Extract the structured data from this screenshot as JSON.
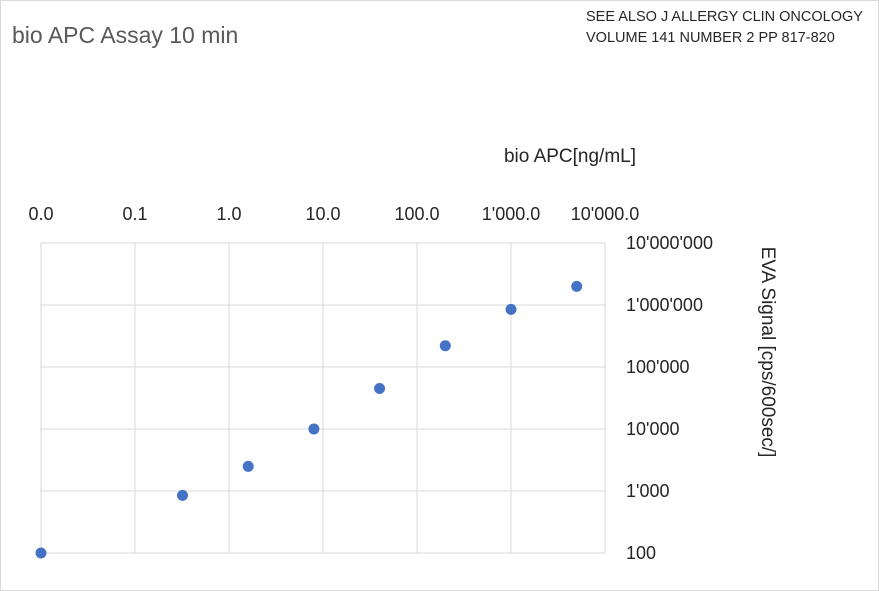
{
  "chart_data": {
    "type": "scatter",
    "title": "bio APC Assay 10 min",
    "annotation": [
      "SEE ALSO J ALLERGY CLIN ONCOLOGY",
      "VOLUME 141 NUMBER 2 PP 817-820"
    ],
    "xlabel": "bio APC[ng/mL]",
    "ylabel": "EVA Signal [cps/600sec/]",
    "x_scale": "log",
    "y_scale": "log",
    "x_axis_position": "top",
    "y_axis_position": "right",
    "xlim": [
      0.01,
      10000
    ],
    "ylim": [
      100,
      10000000
    ],
    "x_tick_labels": [
      "0.0",
      "0.1",
      "1.0",
      "10.0",
      "100.0",
      "1'000.0",
      "10'000.0"
    ],
    "y_tick_labels": [
      "100",
      "1'000",
      "10'000",
      "100'000",
      "1'000'000",
      "10'000'000"
    ],
    "grid": true,
    "legend": "none",
    "marker_color": "#4472c4",
    "x": [
      0.01,
      0.32,
      1.6,
      8,
      40,
      200,
      1000,
      5000
    ],
    "y": [
      100,
      850,
      2500,
      10000,
      45000,
      220000,
      850000,
      2000000
    ]
  }
}
